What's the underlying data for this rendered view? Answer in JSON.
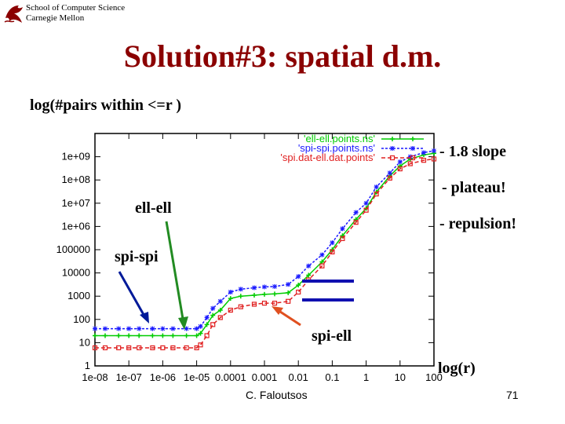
{
  "header": {
    "school_line1": "School of Computer Science",
    "school_line2": "Carnegie Mellon",
    "logo_icon": "dragon-icon"
  },
  "slide": {
    "title": "Solution#3: spatial d.m.",
    "subtitle": "log(#pairs within <=r )",
    "notes": [
      "- 1.8 slope",
      "- plateau!",
      "- repulsion!"
    ],
    "annotations": {
      "ell_ell": "ell-ell",
      "spi_spi": "spi-spi",
      "spi_ell": "spi-ell",
      "x_axis": "log(r)"
    },
    "author": "C. Faloutsos",
    "page": "71"
  },
  "colors": {
    "title": "#8b0000",
    "ell_ell": "#00cc00",
    "spi_spi": "#1a1aff",
    "spi_ell": "#e02020",
    "arrow_blue": "#001a99",
    "arrow_green": "#228b22",
    "arrow_orange": "#e05020",
    "bars": "#1010b0"
  },
  "chart_data": {
    "type": "line",
    "xscale": "log",
    "yscale": "log",
    "xlim": [
      1e-08,
      100
    ],
    "ylim": [
      1,
      10000000000.0
    ],
    "x_tick_labels": [
      "1e-08",
      "1e-07",
      "1e-06",
      "1e-05",
      "0.0001",
      "0.001",
      "0.01",
      "0.1",
      "1",
      "10",
      "100"
    ],
    "y_tick_labels": [
      "1",
      "10",
      "100",
      "1000",
      "10000",
      "100000",
      "1e+06",
      "1e+07",
      "1e+08",
      "1e+09"
    ],
    "series": [
      {
        "name": "'ell-ell.points.ns'",
        "color": "#00cc00",
        "marker": "plus",
        "x": [
          1e-08,
          2e-08,
          5e-08,
          1e-07,
          2e-07,
          5e-07,
          1e-06,
          2e-06,
          5e-06,
          1e-05,
          1.3e-05,
          2e-05,
          3e-05,
          5e-05,
          0.0001,
          0.0002,
          0.0005,
          0.001,
          0.002,
          0.005,
          0.01,
          0.02,
          0.05,
          0.1,
          0.2,
          0.5,
          1,
          2,
          5,
          10,
          20,
          50,
          100
        ],
        "y": [
          20,
          20,
          20,
          20,
          20,
          20,
          20,
          20,
          20,
          20,
          25,
          60,
          150,
          250,
          800,
          1000,
          1100,
          1200,
          1250,
          1400,
          3000,
          8000,
          30000.0,
          100000.0,
          400000.0,
          2000000.0,
          6000000.0,
          30000000.0,
          150000000.0,
          400000000.0,
          800000000.0,
          1200000000.0,
          1400000000.0
        ]
      },
      {
        "name": "'spi-spi.points.ns'",
        "color": "#1a1aff",
        "marker": "star",
        "x": [
          1e-08,
          2e-08,
          5e-08,
          1e-07,
          2e-07,
          5e-07,
          1e-06,
          2e-06,
          5e-06,
          1e-05,
          1.3e-05,
          2e-05,
          3e-05,
          5e-05,
          0.0001,
          0.0002,
          0.0005,
          0.001,
          0.002,
          0.005,
          0.01,
          0.02,
          0.05,
          0.1,
          0.2,
          0.5,
          1,
          2,
          5,
          10,
          20,
          50,
          100
        ],
        "y": [
          40,
          40,
          40,
          40,
          40,
          40,
          40,
          40,
          40,
          40,
          50,
          120,
          300,
          600,
          1500,
          2000,
          2300,
          2500,
          2600,
          3200,
          7000,
          20000.0,
          60000.0,
          200000.0,
          800000.0,
          4000000.0,
          10000000.0,
          50000000.0,
          200000000.0,
          600000000.0,
          1000000000.0,
          1500000000.0,
          1800000000.0
        ]
      },
      {
        "name": "'spi.dat-ell.dat.points'",
        "color": "#e02020",
        "marker": "square",
        "x": [
          1e-08,
          2e-08,
          5e-08,
          1e-07,
          2e-07,
          5e-07,
          1e-06,
          2e-06,
          5e-06,
          1e-05,
          1.3e-05,
          2e-05,
          3e-05,
          5e-05,
          0.0001,
          0.0002,
          0.0005,
          0.001,
          0.002,
          0.005,
          0.01,
          0.02,
          0.05,
          0.1,
          0.2,
          0.5,
          1,
          2,
          5,
          10,
          20,
          50,
          100
        ],
        "y": [
          6,
          6,
          6,
          6,
          6,
          6,
          6,
          6,
          6,
          6,
          8,
          20,
          60,
          120,
          250,
          350,
          450,
          500,
          500,
          600,
          1500,
          5000,
          20000.0,
          80000.0,
          300000.0,
          1500000.0,
          5000000.0,
          25000000.0,
          120000000.0,
          300000000.0,
          500000000.0,
          700000000.0,
          800000000.0
        ]
      }
    ]
  }
}
